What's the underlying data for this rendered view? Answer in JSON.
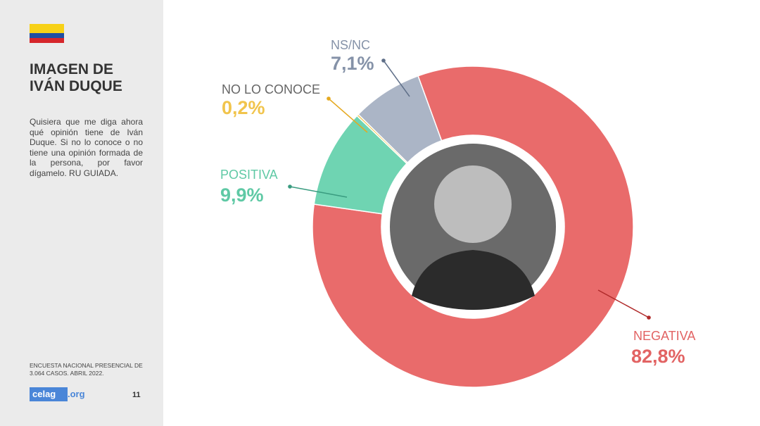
{
  "sidebar": {
    "title": "IMAGEN DE IVÁN DUQUE",
    "question": "Quisiera que me diga ahora qué opinión tiene de Iván Duque. Si no lo conoce o no tiene una opinión formada de la persona, por favor dígamelo. RU GUIADA.",
    "source": "ENCUESTA NACIONAL PRESENCIAL DE 3.064 CASOS. ABRIL 2022.",
    "logo": [
      "celag",
      ".org"
    ],
    "page": 11
  },
  "chart_data": {
    "type": "donut",
    "categories": [
      "NEGATIVA",
      "POSITIVA",
      "NO LO CONOCE",
      "NS/NC"
    ],
    "values": [
      82.8,
      9.9,
      0.2,
      7.1
    ],
    "value_labels": [
      "82,8%",
      "9,9%",
      "0,2%",
      "7,1%"
    ],
    "colors": [
      "#e96b6b",
      "#6fd4b2",
      "#f1c44c",
      "#abb5c6"
    ]
  }
}
